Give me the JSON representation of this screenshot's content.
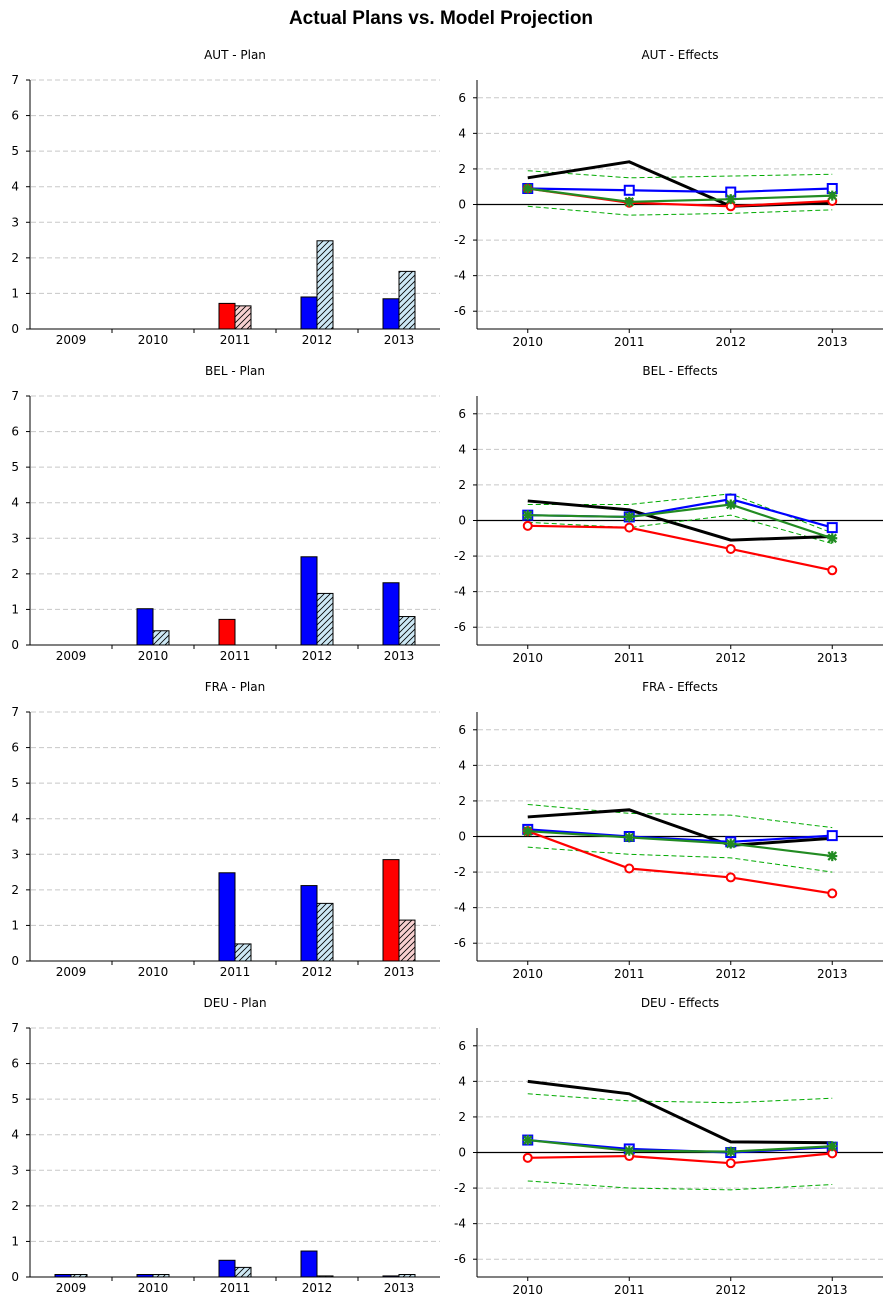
{
  "title": "Actual Plans vs. Model Projection",
  "colors": {
    "actual_plan": "#0000ff",
    "actual_fill": "#0000ff",
    "projection_fill": "#cde8f5",
    "negative_actual": "#ff0000",
    "negative_projection": "#f8d0d0",
    "black_series": "#000000",
    "blue_series": "#0000ff",
    "red_series": "#ff0000",
    "green_series": "#228b22",
    "band": "#00aa00"
  },
  "chart_data": [
    {
      "type": "bar",
      "title": "AUT - Plan",
      "categories": [
        "2009",
        "2010",
        "2011",
        "2012",
        "2013"
      ],
      "ylim": [
        0,
        7
      ],
      "yticks": [
        "0",
        "1",
        "2",
        "3",
        "4",
        "5",
        "6",
        "7"
      ],
      "grid": true,
      "series": [
        {
          "values": [
            0,
            0,
            0.72,
            0.9,
            0.85
          ],
          "colors": [
            "blue",
            "blue",
            "red",
            "blue",
            "blue"
          ]
        },
        {
          "values": [
            0,
            0,
            0.65,
            2.48,
            1.62
          ],
          "pattern": "hatched",
          "colors": [
            "blue",
            "blue",
            "red",
            "blue",
            "blue"
          ]
        }
      ]
    },
    {
      "type": "line",
      "title": "AUT - Effects",
      "x": [
        "2010",
        "2011",
        "2012",
        "2013"
      ],
      "ylim": [
        -7,
        7
      ],
      "yticks": [
        "-6",
        "-4",
        "-2",
        "0",
        "2",
        "4",
        "6"
      ],
      "grid": true,
      "series": [
        {
          "color": "black",
          "marker": "none",
          "values": [
            1.5,
            2.4,
            -0.1,
            0.1
          ]
        },
        {
          "color": "blue",
          "marker": "square",
          "values": [
            0.9,
            0.8,
            0.7,
            0.9
          ]
        },
        {
          "color": "red",
          "marker": "circle",
          "values": [
            0.9,
            0.1,
            -0.1,
            0.2
          ]
        },
        {
          "color": "green",
          "marker": "star",
          "values": [
            0.9,
            0.15,
            0.3,
            0.5
          ]
        },
        {
          "color": "band",
          "style": "dashed",
          "values": [
            1.9,
            1.5,
            1.6,
            1.7
          ]
        },
        {
          "color": "band",
          "style": "dashed",
          "values": [
            -0.1,
            -0.6,
            -0.5,
            -0.3
          ]
        }
      ]
    },
    {
      "type": "bar",
      "title": "BEL - Plan",
      "categories": [
        "2009",
        "2010",
        "2011",
        "2012",
        "2013"
      ],
      "ylim": [
        0,
        7
      ],
      "yticks": [
        "0",
        "1",
        "2",
        "3",
        "4",
        "5",
        "6",
        "7"
      ],
      "grid": true,
      "series": [
        {
          "values": [
            0,
            1.02,
            0.72,
            2.48,
            1.75
          ],
          "colors": [
            "blue",
            "blue",
            "red",
            "blue",
            "blue"
          ]
        },
        {
          "values": [
            0,
            0.4,
            0,
            1.45,
            0.8
          ],
          "pattern": "hatched",
          "colors": [
            "blue",
            "blue",
            "red",
            "blue",
            "blue"
          ]
        }
      ]
    },
    {
      "type": "line",
      "title": "BEL - Effects",
      "x": [
        "2010",
        "2011",
        "2012",
        "2013"
      ],
      "ylim": [
        -7,
        7
      ],
      "yticks": [
        "-6",
        "-4",
        "-2",
        "0",
        "2",
        "4",
        "6"
      ],
      "grid": true,
      "series": [
        {
          "color": "black",
          "marker": "none",
          "values": [
            1.1,
            0.6,
            -1.1,
            -0.9
          ]
        },
        {
          "color": "blue",
          "marker": "square",
          "values": [
            0.3,
            0.2,
            1.2,
            -0.4
          ]
        },
        {
          "color": "red",
          "marker": "circle",
          "values": [
            -0.3,
            -0.4,
            -1.6,
            -2.8
          ]
        },
        {
          "color": "green",
          "marker": "star",
          "values": [
            0.3,
            0.2,
            0.9,
            -1.0
          ]
        },
        {
          "color": "band",
          "style": "dashed",
          "values": [
            0.9,
            0.9,
            1.5,
            -0.7
          ]
        },
        {
          "color": "band",
          "style": "dashed",
          "values": [
            -0.1,
            -0.4,
            0.3,
            -1.3
          ]
        }
      ]
    },
    {
      "type": "bar",
      "title": "FRA - Plan",
      "categories": [
        "2009",
        "2010",
        "2011",
        "2012",
        "2013"
      ],
      "ylim": [
        0,
        7
      ],
      "yticks": [
        "0",
        "1",
        "2",
        "3",
        "4",
        "5",
        "6",
        "7"
      ],
      "grid": true,
      "series": [
        {
          "values": [
            0,
            0,
            2.48,
            2.12,
            2.85
          ],
          "colors": [
            "blue",
            "blue",
            "blue",
            "blue",
            "red"
          ]
        },
        {
          "values": [
            0,
            0,
            0.48,
            1.62,
            1.15
          ],
          "pattern": "hatched",
          "colors": [
            "blue",
            "blue",
            "blue",
            "blue",
            "red"
          ]
        }
      ]
    },
    {
      "type": "line",
      "title": "FRA - Effects",
      "x": [
        "2010",
        "2011",
        "2012",
        "2013"
      ],
      "ylim": [
        -7,
        7
      ],
      "yticks": [
        "-6",
        "-4",
        "-2",
        "0",
        "2",
        "4",
        "6"
      ],
      "grid": true,
      "series": [
        {
          "color": "black",
          "marker": "none",
          "values": [
            1.1,
            1.5,
            -0.5,
            -0.1
          ]
        },
        {
          "color": "blue",
          "marker": "square",
          "values": [
            0.4,
            0.0,
            -0.3,
            0.05
          ]
        },
        {
          "color": "red",
          "marker": "circle",
          "values": [
            0.3,
            -1.8,
            -2.3,
            -3.2
          ]
        },
        {
          "color": "green",
          "marker": "star",
          "values": [
            0.3,
            -0.05,
            -0.4,
            -1.1
          ]
        },
        {
          "color": "band",
          "style": "dashed",
          "values": [
            1.8,
            1.3,
            1.2,
            0.5
          ]
        },
        {
          "color": "band",
          "style": "dashed",
          "values": [
            -0.6,
            -1.0,
            -1.2,
            -2.0
          ]
        }
      ]
    },
    {
      "type": "bar",
      "title": "DEU - Plan",
      "categories": [
        "2009",
        "2010",
        "2011",
        "2012",
        "2013"
      ],
      "ylim": [
        0,
        7
      ],
      "yticks": [
        "0",
        "1",
        "2",
        "3",
        "4",
        "5",
        "6",
        "7"
      ],
      "grid": true,
      "series": [
        {
          "values": [
            0.07,
            0.07,
            0.47,
            0.73,
            0.03
          ],
          "colors": [
            "blue",
            "blue",
            "blue",
            "blue",
            "blue"
          ]
        },
        {
          "values": [
            0.07,
            0.07,
            0.27,
            0.03,
            0.07
          ],
          "pattern": "hatched",
          "colors": [
            "blue",
            "blue",
            "blue",
            "blue",
            "blue"
          ]
        }
      ]
    },
    {
      "type": "line",
      "title": "DEU - Effects",
      "x": [
        "2010",
        "2011",
        "2012",
        "2013"
      ],
      "ylim": [
        -7,
        7
      ],
      "yticks": [
        "-6",
        "-4",
        "-2",
        "0",
        "2",
        "4",
        "6"
      ],
      "grid": true,
      "series": [
        {
          "color": "black",
          "marker": "none",
          "values": [
            4.0,
            3.3,
            0.6,
            0.55
          ]
        },
        {
          "color": "blue",
          "marker": "square",
          "values": [
            0.7,
            0.2,
            0.0,
            0.3
          ]
        },
        {
          "color": "red",
          "marker": "circle",
          "values": [
            -0.3,
            -0.2,
            -0.6,
            -0.05
          ]
        },
        {
          "color": "green",
          "marker": "star",
          "values": [
            0.7,
            0.1,
            0.05,
            0.35
          ]
        },
        {
          "color": "band",
          "style": "dashed",
          "values": [
            3.3,
            2.9,
            2.8,
            3.05
          ]
        },
        {
          "color": "band",
          "style": "dashed",
          "values": [
            -1.6,
            -2.0,
            -2.1,
            -1.8
          ]
        }
      ]
    }
  ]
}
